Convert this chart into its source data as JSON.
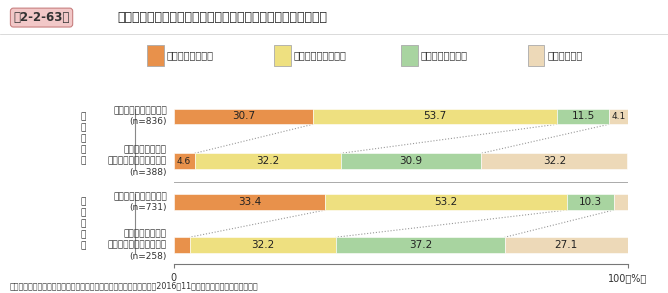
{
  "title_box": "第2-2-63図",
  "title_main": "後継者・後継者候補との対話状況（小規模法人・個人事業者）",
  "legend_labels": [
    "十分にできている",
    "おおむねできている",
    "対話を試みている",
    "できていない"
  ],
  "colors": [
    "#E8914B",
    "#EEE080",
    "#A8D4A0",
    "#EDD9B8"
  ],
  "legend_edge_colors": [
    "#C07030",
    "#C0B840",
    "#70A870",
    "#C0A880"
  ],
  "categories": [
    "後継者が決まっている\n(n=836)",
    "候補者がいるが、\n本人の了承を得ていない\n(n=388)",
    "後継者が決まっている\n(n=731)",
    "候補者がいるが、\n本人の了承を得ていない\n(n=258)"
  ],
  "group_labels": [
    "小規模法人",
    "個人事業者"
  ],
  "values": [
    [
      30.7,
      53.7,
      11.5,
      4.1
    ],
    [
      4.6,
      32.2,
      30.9,
      32.2
    ],
    [
      33.4,
      53.2,
      10.3,
      3.1
    ],
    [
      3.5,
      32.2,
      37.2,
      27.1
    ]
  ],
  "bar_value_labels": [
    [
      "30.7",
      "53.7",
      "11.5",
      "4.1"
    ],
    [
      "4.6",
      "32.2",
      "30.9",
      "32.2"
    ],
    [
      "33.4",
      "53.2",
      "10.3",
      "3.1"
    ],
    [
      "3.5",
      "32.2",
      "37.2",
      "27.1"
    ]
  ],
  "source": "資料：中小企業庁委託「企業経営の継続に関するアンケート調査」（2016年11月、（株）東京商工リサーチ）",
  "bg_color": "#FFFFFF",
  "title_box_color": "#C0504D",
  "title_box_bg": "#F0D0D0",
  "header_line_color": "#CCCCCC"
}
